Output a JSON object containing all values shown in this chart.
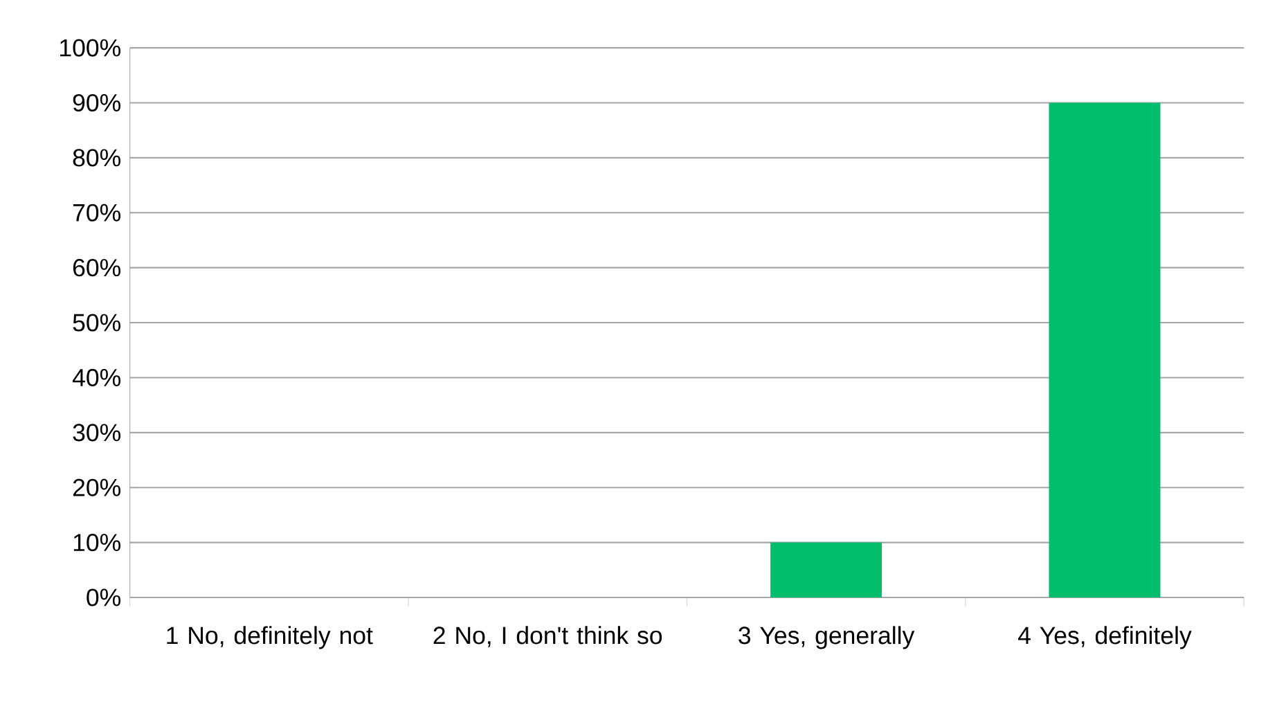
{
  "chart_data": {
    "type": "bar",
    "categories": [
      "1 No, definitely not",
      "2 No, I don't think so",
      "3 Yes, generally",
      "4 Yes, definitely"
    ],
    "values": [
      0,
      0,
      10,
      90
    ],
    "color": "#00be6b",
    "ylim": [
      0,
      100
    ],
    "yticks": [
      {
        "value": 0,
        "label": "0%"
      },
      {
        "value": 10,
        "label": "10%"
      },
      {
        "value": 20,
        "label": "20%"
      },
      {
        "value": 30,
        "label": "30%"
      },
      {
        "value": 40,
        "label": "40%"
      },
      {
        "value": 50,
        "label": "50%"
      },
      {
        "value": 60,
        "label": "60%"
      },
      {
        "value": 70,
        "label": "70%"
      },
      {
        "value": 80,
        "label": "80%"
      },
      {
        "value": 90,
        "label": "90%"
      },
      {
        "value": 100,
        "label": "100%"
      }
    ],
    "grid": "y"
  }
}
